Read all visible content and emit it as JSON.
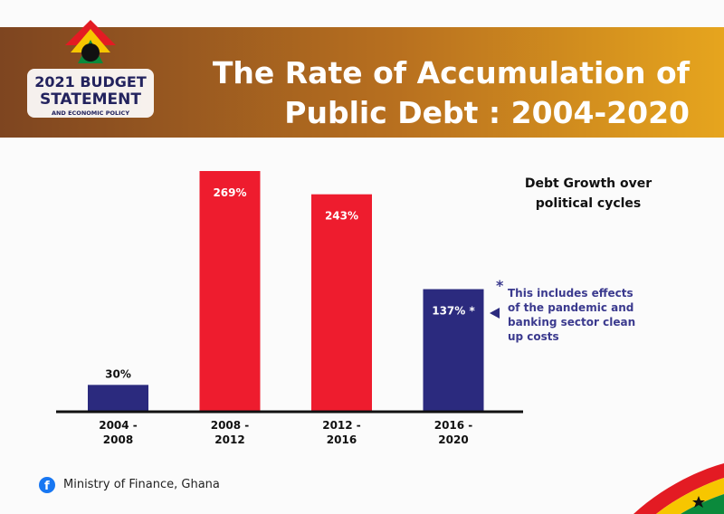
{
  "logo": [
    "2021 BUDGET",
    "STATEMENT",
    "AND ECONOMIC POLICY"
  ],
  "footer": "Ministry of Finance, Ghana",
  "chart_data": {
    "type": "bar",
    "title": [
      "The Rate of Accumulation of",
      "Public Debt : 2004-2020"
    ],
    "annotation": "Debt Growth over political cycles",
    "footnote": "This includes effects of the pandemic and banking sector clean up costs",
    "categories": [
      "2004 - 2008",
      "2008 - 2012",
      "2012 - 2016",
      "2016 - 2020"
    ],
    "values": [
      30,
      269,
      243,
      137
    ],
    "value_labels": [
      "30%",
      "269%",
      "243%",
      "137% *"
    ],
    "colors": [
      "#2b2a7e",
      "#ee1c2e",
      "#ee1c2e",
      "#2b2a7e"
    ]
  }
}
